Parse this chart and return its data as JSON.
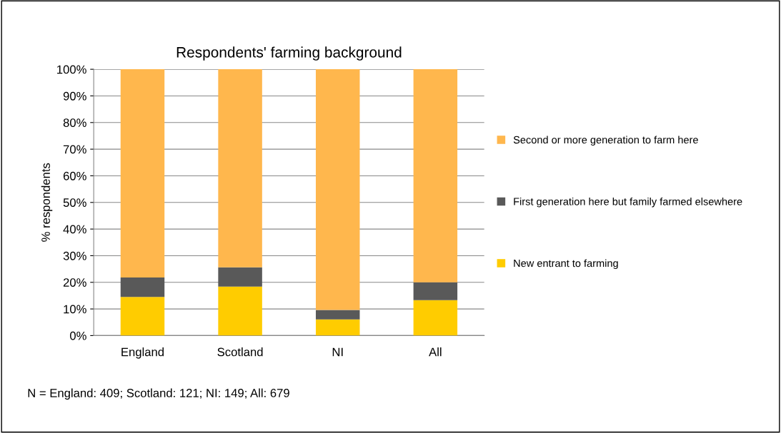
{
  "chart_data": {
    "type": "bar",
    "title": "Respondents' farming background",
    "ylabel": "% respondents",
    "categories": [
      "England",
      "Scotland",
      "NI",
      "All"
    ],
    "stacked": true,
    "series": [
      {
        "name": "New entrant to farming",
        "color": "#ffcc00",
        "values": [
          14.5,
          18.4,
          6.1,
          13.3
        ]
      },
      {
        "name": "First generation here but family farmed elsewhere",
        "color": "#595959",
        "values": [
          7.3,
          7.2,
          3.5,
          6.7
        ]
      },
      {
        "name": "Second or more generation to farm here",
        "color": "#ffb74d",
        "values": [
          78.2,
          74.4,
          90.4,
          80.0
        ]
      }
    ],
    "ylim": [
      0,
      100
    ],
    "yticks": [
      {
        "value": 0,
        "label": "0%"
      },
      {
        "value": 10,
        "label": "10%"
      },
      {
        "value": 20,
        "label": "20%"
      },
      {
        "value": 30,
        "label": "30%"
      },
      {
        "value": 40,
        "label": "40%"
      },
      {
        "value": 50,
        "label": "50%"
      },
      {
        "value": 60,
        "label": "60%"
      },
      {
        "value": 70,
        "label": "70%"
      },
      {
        "value": 80,
        "label": "80%"
      },
      {
        "value": 90,
        "label": "90%"
      },
      {
        "value": 100,
        "label": "100%"
      }
    ],
    "grid": "y",
    "legend": "right",
    "annotations": [
      "N = England: 409; Scotland: 121; NI: 149; All: 679"
    ]
  }
}
